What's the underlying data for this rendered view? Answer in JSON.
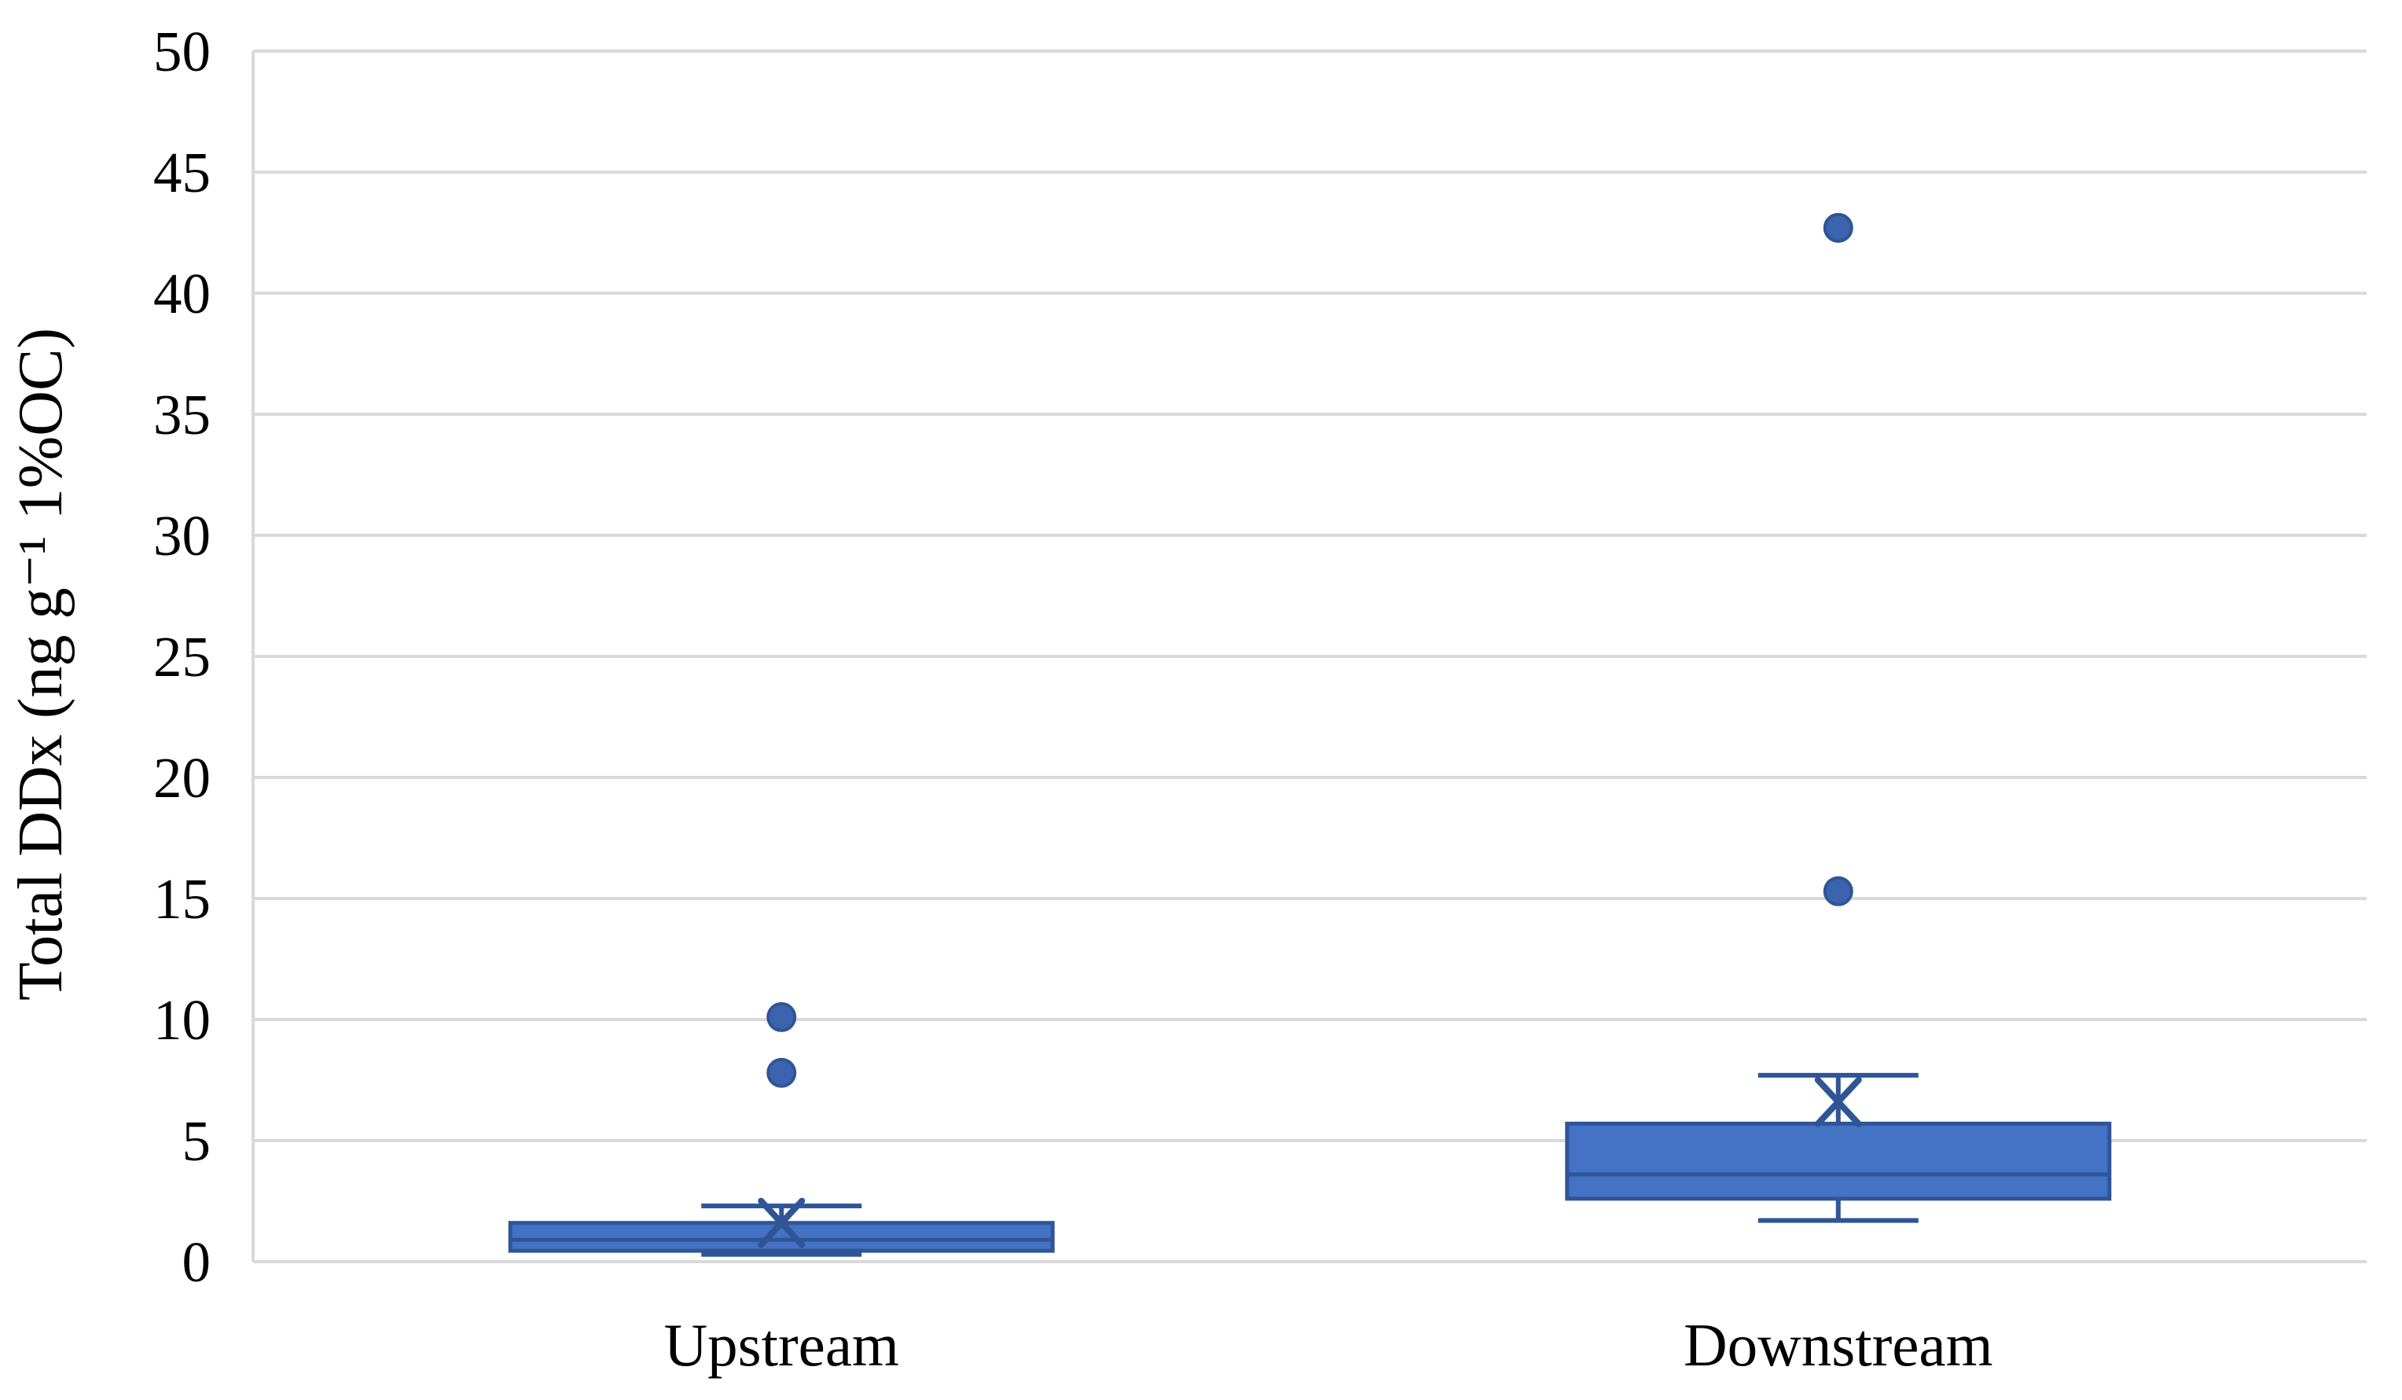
{
  "chart_data": {
    "type": "boxplot",
    "title": "",
    "xlabel": "",
    "ylabel": "Total DDx (ng g⁻¹ 1%OC)",
    "ylim": [
      0,
      50
    ],
    "yticks": [
      0,
      5,
      10,
      15,
      20,
      25,
      30,
      35,
      40,
      45,
      50
    ],
    "grid": "horizontal gridlines on, left and bottom plot border, no right border",
    "legend": "none",
    "categories": [
      "Upstream",
      "Downstream"
    ],
    "series": [
      {
        "name": "Upstream",
        "whisker_low": 0.3,
        "q1": 0.45,
        "median": 0.9,
        "q3": 1.6,
        "whisker_high": 2.3,
        "mean": 1.6,
        "outliers": [
          7.8,
          10.1
        ]
      },
      {
        "name": "Downstream",
        "whisker_low": 1.7,
        "q1": 2.6,
        "median": 3.6,
        "q3": 5.7,
        "whisker_high": 7.7,
        "mean": 6.6,
        "outliers": [
          15.3,
          42.7
        ]
      }
    ],
    "colors": {
      "box_fill": "#4472C4",
      "box_line": "#2F5597",
      "outlier_fill": "#3C64AE",
      "grid_line": "#D9D9D9",
      "text": "#000000",
      "background": "#FFFFFF"
    }
  }
}
